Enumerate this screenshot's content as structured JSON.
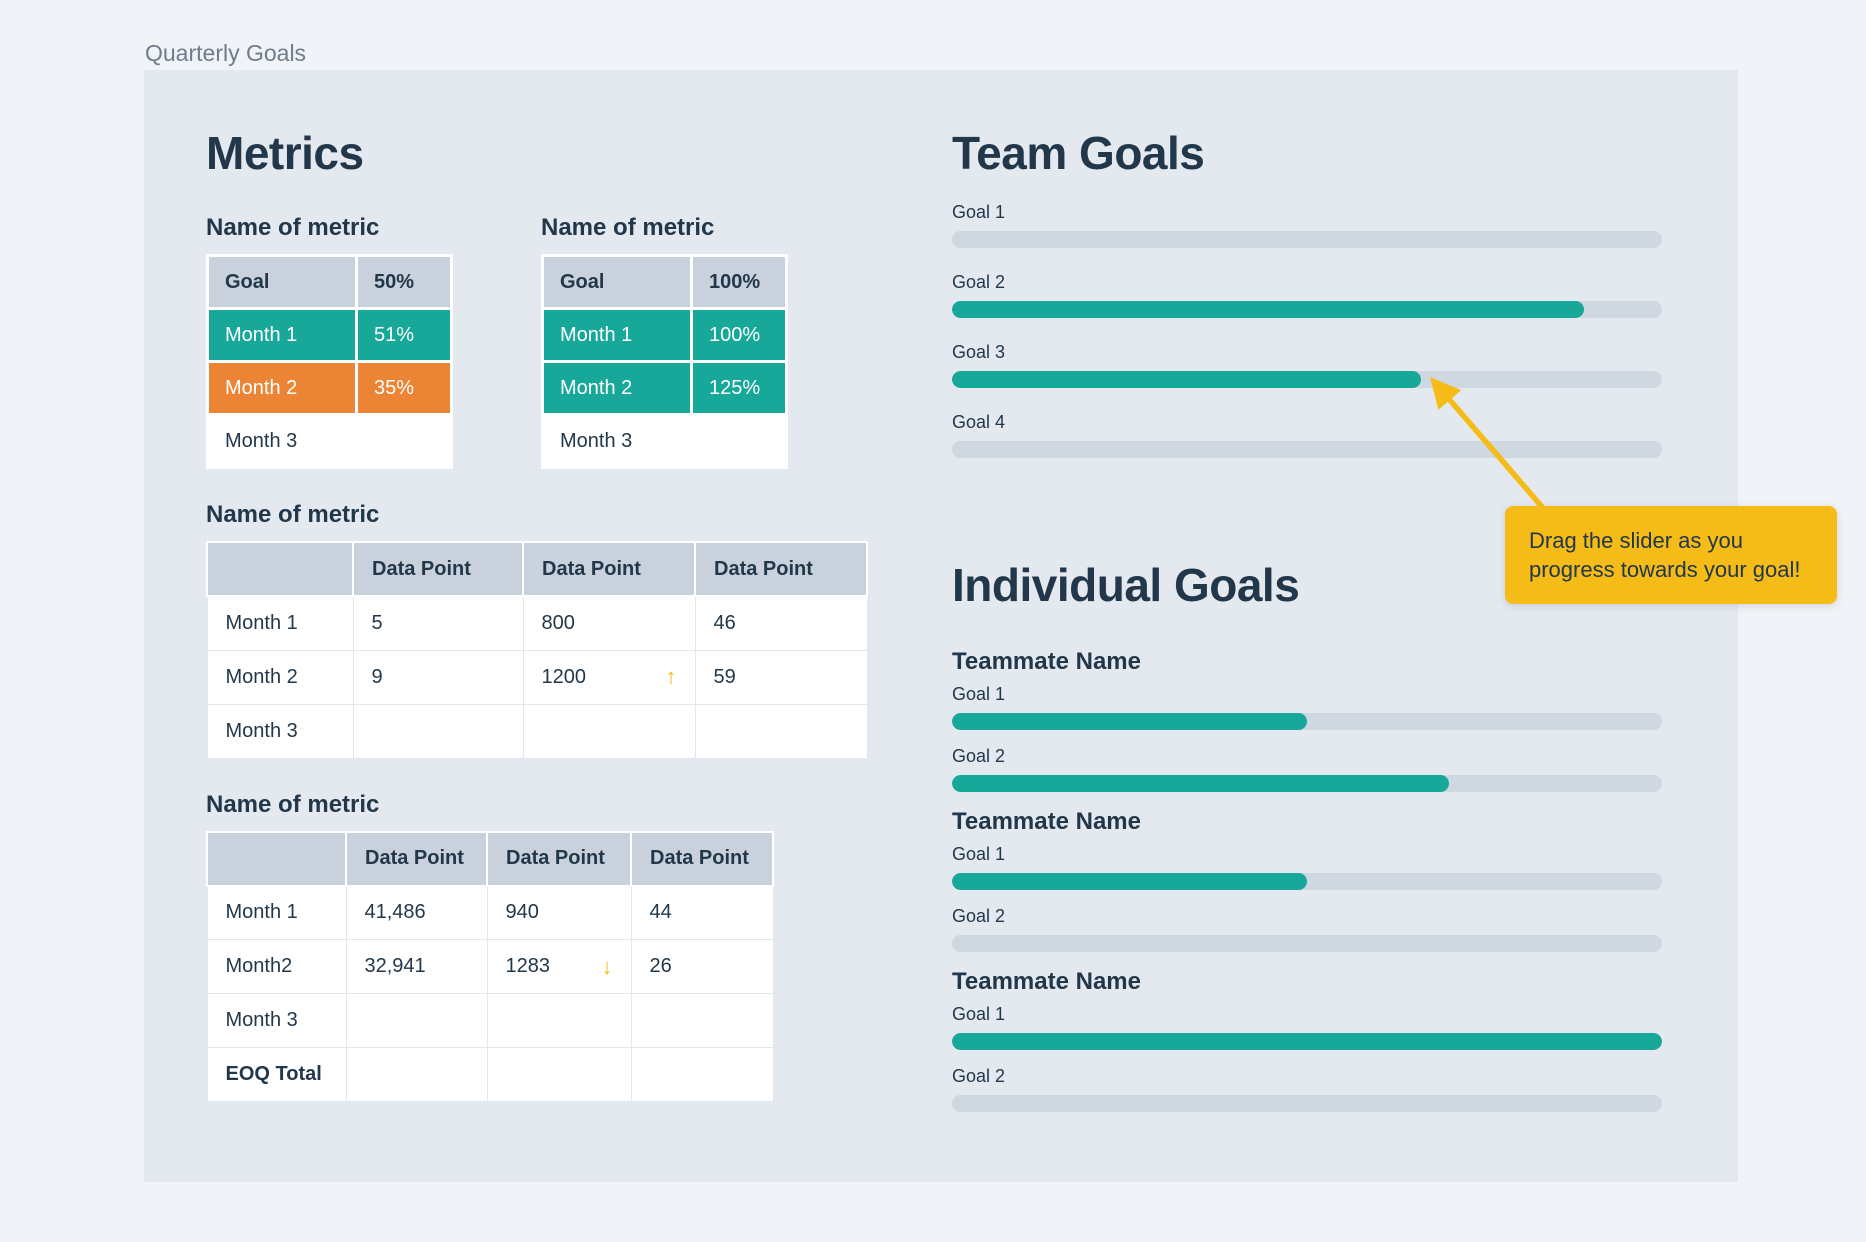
{
  "page": {
    "title": "Quarterly Goals"
  },
  "colors": {
    "page_bg": "#F0F3F7",
    "card_bg": "#E4E9F0",
    "ink": "#22384A",
    "muted": "#6F7C8B",
    "teal": "#18A899",
    "orange": "#EC8435",
    "yellow": "#F5BB17",
    "header_gray": "#C9D2DC",
    "track": "#CFD7E0",
    "cell_border": "#E2E7EE",
    "white": "#FFFFFF"
  },
  "icons": {
    "trend_up": "↑",
    "trend_down": "↓"
  },
  "metrics": {
    "heading": "Metrics",
    "small_tables": [
      {
        "label": "Name of metric",
        "header": [
          "Goal",
          "50%"
        ],
        "rows": [
          {
            "label": "Month 1",
            "value": "51%",
            "state": "teal"
          },
          {
            "label": "Month 2",
            "value": "35%",
            "state": "orange"
          },
          {
            "label": "Month 3",
            "value": "",
            "state": "plain"
          }
        ]
      },
      {
        "label": "Name of metric",
        "header": [
          "Goal",
          "100%"
        ],
        "rows": [
          {
            "label": "Month 1",
            "value": "100%",
            "state": "teal"
          },
          {
            "label": "Month 2",
            "value": "125%",
            "state": "teal"
          },
          {
            "label": "Month 3",
            "value": "",
            "state": "plain"
          }
        ]
      }
    ],
    "data_tables": [
      {
        "label": "Name of metric",
        "columns": [
          "",
          "Data Point",
          "Data Point",
          "Data Point"
        ],
        "rows": [
          {
            "label": "Month 1",
            "values": [
              "5",
              "800",
              "46"
            ],
            "trend": ""
          },
          {
            "label": "Month 2",
            "values": [
              "9",
              "1200",
              "59"
            ],
            "trend": "up"
          },
          {
            "label": "Month 3",
            "values": [
              "",
              "",
              ""
            ],
            "trend": ""
          }
        ]
      },
      {
        "label": "Name of metric",
        "columns": [
          "",
          "Data Point",
          "Data Point",
          "Data Point"
        ],
        "rows": [
          {
            "label": "Month 1",
            "values": [
              "41,486",
              "940",
              "44"
            ],
            "trend": ""
          },
          {
            "label": "Month2",
            "values": [
              "32,941",
              "1283",
              "26"
            ],
            "trend": "down"
          },
          {
            "label": "Month 3",
            "values": [
              "",
              "",
              ""
            ],
            "trend": ""
          },
          {
            "label": "EOQ Total",
            "values": [
              "",
              "",
              ""
            ],
            "trend": "",
            "bold": true
          }
        ]
      }
    ]
  },
  "team_goals": {
    "heading": "Team Goals",
    "goals": [
      {
        "label": "Goal 1",
        "progress": 0
      },
      {
        "label": "Goal 2",
        "progress": 89
      },
      {
        "label": "Goal 3",
        "progress": 66
      },
      {
        "label": "Goal 4",
        "progress": 0
      }
    ]
  },
  "tooltip": {
    "text": "Drag the slider as you progress towards your goal!"
  },
  "individual_goals": {
    "heading": "Individual Goals",
    "teammates": [
      {
        "name": "Teammate Name",
        "goals": [
          {
            "label": "Goal 1",
            "progress": 50
          },
          {
            "label": "Goal 2",
            "progress": 70
          }
        ]
      },
      {
        "name": "Teammate Name",
        "goals": [
          {
            "label": "Goal 1",
            "progress": 50
          },
          {
            "label": "Goal 2",
            "progress": 0
          }
        ]
      },
      {
        "name": "Teammate Name",
        "goals": [
          {
            "label": "Goal 1",
            "progress": 100
          },
          {
            "label": "Goal 2",
            "progress": 0
          }
        ]
      }
    ]
  }
}
